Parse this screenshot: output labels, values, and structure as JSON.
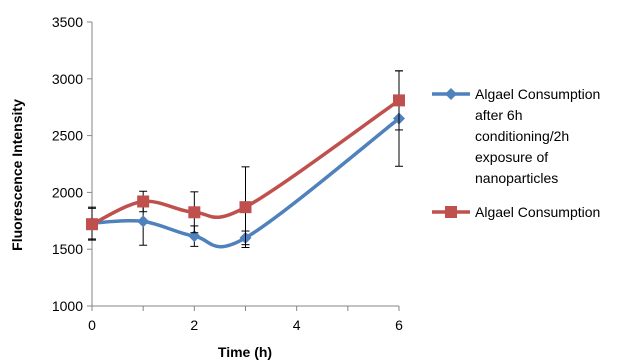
{
  "chart_data": {
    "type": "line",
    "xlabel": "Time (h)",
    "ylabel": "Fluorescence Intensity",
    "xlim": [
      0,
      6
    ],
    "ylim": [
      1000,
      3500
    ],
    "x_ticks": [
      0,
      2,
      4,
      6
    ],
    "y_ticks": [
      1000,
      1500,
      2000,
      2500,
      3000,
      3500
    ],
    "grid": false,
    "legend_position": "right",
    "series": [
      {
        "name": "Algael Consumption after 6h conditioning/2h exposure of nanoparticles",
        "legend_lines": [
          "Algael Consumption",
          "after 6h",
          "conditioning/2h",
          "exposure of",
          "nanoparticles"
        ],
        "color": "#4F81BD",
        "marker": "diamond",
        "x": [
          0,
          1,
          2,
          3,
          6
        ],
        "y": [
          1730,
          1745,
          1615,
          1600,
          2650
        ],
        "error": [
          140,
          210,
          90,
          60,
          420
        ]
      },
      {
        "name": "Algael Consumption",
        "legend_lines": [
          "Algael Consumption"
        ],
        "color": "#C0504D",
        "marker": "square",
        "x": [
          0,
          1,
          2,
          3,
          6
        ],
        "y": [
          1720,
          1920,
          1825,
          1870,
          2810
        ],
        "error": [
          140,
          90,
          180,
          355,
          260
        ]
      }
    ]
  }
}
